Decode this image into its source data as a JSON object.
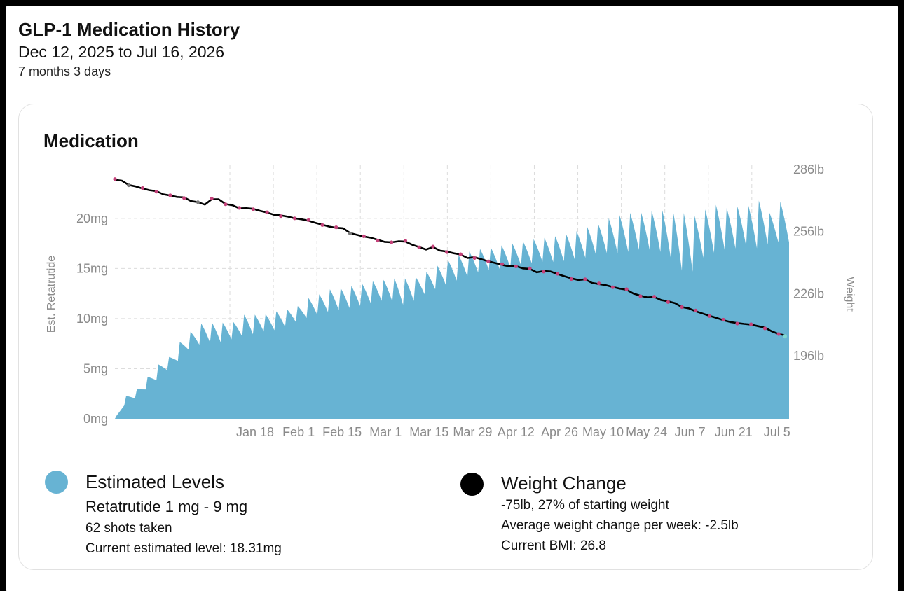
{
  "header": {
    "title": "GLP-1 Medication History",
    "date_range": "Dec 12, 2025 to Jul 16, 2026",
    "duration": "7 months 3 days"
  },
  "card": {
    "title": "Medication"
  },
  "colors": {
    "levels_fill": "#67b3d3",
    "weight_line": "#000000",
    "weight_dot": "#c4427a",
    "weight_dot_gray": "#7a7a7a",
    "weight_dot_teal": "#7fd6cf"
  },
  "chart_data": {
    "type": "area",
    "x_tick_labels": [
      "Jan 18",
      "Feb 1",
      "Feb 15",
      "Mar 1",
      "Mar 15",
      "Mar 29",
      "Apr 12",
      "Apr 26",
      "May 10",
      "May 24",
      "Jun 7",
      "Jun 21",
      "Jul 5"
    ],
    "y_left": {
      "label": "Est. Retatrutide",
      "unit": "mg",
      "ticks": [
        "0mg",
        "5mg",
        "10mg",
        "15mg",
        "20mg"
      ],
      "range": [
        0,
        20
      ]
    },
    "y_right": {
      "label": "Weight",
      "unit": "lb",
      "ticks": [
        "286lb",
        "256lb",
        "226lb",
        "196lb"
      ]
    },
    "grid": true,
    "series": [
      {
        "name": "Estimated Levels",
        "kind": "area",
        "shots": 62,
        "peak_envelope_mg": [
          [
            0,
            1.4
          ],
          [
            3,
            2.4
          ],
          [
            6,
            3.0
          ],
          [
            9,
            4.3
          ],
          [
            12,
            5.5
          ],
          [
            15,
            6.2
          ],
          [
            18,
            7.7
          ],
          [
            21,
            8.7
          ],
          [
            24,
            9.5
          ],
          [
            27,
            9.6
          ],
          [
            30,
            9.6
          ],
          [
            33,
            9.6
          ],
          [
            36,
            10.4
          ],
          [
            39,
            10.4
          ],
          [
            42,
            10.4
          ],
          [
            45,
            10.7
          ],
          [
            48,
            10.9
          ],
          [
            51,
            11.1
          ],
          [
            54,
            12.0
          ],
          [
            57,
            12.3
          ],
          [
            60,
            12.9
          ],
          [
            63,
            13.0
          ],
          [
            66,
            13.2
          ],
          [
            69,
            13.4
          ],
          [
            72,
            13.7
          ],
          [
            75,
            13.8
          ],
          [
            78,
            14.0
          ],
          [
            81,
            14.0
          ],
          [
            84,
            14.0
          ],
          [
            87,
            14.4
          ],
          [
            90,
            15.1
          ],
          [
            93,
            15.6
          ],
          [
            96,
            16.2
          ],
          [
            99,
            16.5
          ],
          [
            102,
            16.9
          ],
          [
            105,
            17.0
          ],
          [
            108,
            17.2
          ],
          [
            111,
            17.4
          ],
          [
            114,
            17.6
          ],
          [
            117,
            17.8
          ],
          [
            120,
            18.0
          ],
          [
            123,
            18.1
          ],
          [
            126,
            18.3
          ],
          [
            129,
            18.6
          ],
          [
            132,
            18.8
          ],
          [
            135,
            19.3
          ],
          [
            138,
            19.6
          ],
          [
            141,
            20.2
          ],
          [
            144,
            20.4
          ],
          [
            147,
            20.6
          ],
          [
            150,
            20.7
          ],
          [
            153,
            20.8
          ],
          [
            156,
            20.8
          ],
          [
            159,
            20.7
          ],
          [
            162,
            20.5
          ],
          [
            165,
            20.2
          ],
          [
            168,
            21.0
          ],
          [
            171,
            21.4
          ],
          [
            174,
            21.0
          ],
          [
            177,
            21.2
          ],
          [
            180,
            21.4
          ],
          [
            183,
            21.8
          ],
          [
            186,
            20.5
          ],
          [
            189,
            21.7
          ],
          [
            192,
            21.7
          ]
        ],
        "trough_envelope_mg": [
          [
            0,
            0
          ],
          [
            3,
            1.5
          ],
          [
            6,
            2.1
          ],
          [
            9,
            3.0
          ],
          [
            12,
            3.9
          ],
          [
            15,
            4.9
          ],
          [
            18,
            5.8
          ],
          [
            21,
            6.9
          ],
          [
            24,
            7.4
          ],
          [
            27,
            7.6
          ],
          [
            30,
            7.6
          ],
          [
            33,
            7.9
          ],
          [
            36,
            8.2
          ],
          [
            39,
            8.4
          ],
          [
            42,
            8.7
          ],
          [
            45,
            8.8
          ],
          [
            48,
            9.1
          ],
          [
            51,
            9.6
          ],
          [
            54,
            10.0
          ],
          [
            57,
            10.3
          ],
          [
            60,
            10.6
          ],
          [
            63,
            10.8
          ],
          [
            66,
            11.0
          ],
          [
            69,
            11.2
          ],
          [
            72,
            11.4
          ],
          [
            75,
            11.7
          ],
          [
            78,
            11.9
          ],
          [
            81,
            11.3
          ],
          [
            84,
            11.5
          ],
          [
            87,
            12.2
          ],
          [
            90,
            12.8
          ],
          [
            93,
            13.1
          ],
          [
            96,
            13.6
          ],
          [
            99,
            14.0
          ],
          [
            102,
            14.4
          ],
          [
            105,
            14.8
          ],
          [
            108,
            14.9
          ],
          [
            111,
            15.0
          ],
          [
            114,
            15.2
          ],
          [
            117,
            15.4
          ],
          [
            120,
            15.6
          ],
          [
            123,
            15.7
          ],
          [
            126,
            15.6
          ],
          [
            129,
            15.8
          ],
          [
            132,
            16.0
          ],
          [
            135,
            16.1
          ],
          [
            138,
            16.4
          ],
          [
            141,
            16.6
          ],
          [
            144,
            16.5
          ],
          [
            147,
            16.7
          ],
          [
            150,
            16.9
          ],
          [
            153,
            16.8
          ],
          [
            156,
            16.6
          ],
          [
            159,
            15.6
          ],
          [
            162,
            14.6
          ],
          [
            165,
            14.7
          ],
          [
            168,
            16.3
          ],
          [
            171,
            16.6
          ],
          [
            174,
            16.8
          ],
          [
            177,
            17.0
          ],
          [
            180,
            17.2
          ],
          [
            183,
            17.0
          ],
          [
            186,
            17.4
          ],
          [
            189,
            17.6
          ],
          [
            192,
            17.6
          ]
        ]
      },
      {
        "name": "Weight Change",
        "kind": "line",
        "points_lb": [
          [
            0,
            281
          ],
          [
            2,
            280.6
          ],
          [
            4,
            278.5
          ],
          [
            6,
            277.8
          ],
          [
            8,
            276.8
          ],
          [
            10,
            276
          ],
          [
            12,
            275.5
          ],
          [
            14,
            274
          ],
          [
            16,
            273.4
          ],
          [
            18,
            272.7
          ],
          [
            20,
            272.5
          ],
          [
            22,
            270.7
          ],
          [
            24,
            270.2
          ],
          [
            26,
            269
          ],
          [
            28,
            271.6
          ],
          [
            30,
            271.6
          ],
          [
            32,
            269.3
          ],
          [
            34,
            268.7
          ],
          [
            36,
            267.2
          ],
          [
            38,
            267.3
          ],
          [
            40,
            267
          ],
          [
            42,
            266
          ],
          [
            44,
            265.2
          ],
          [
            46,
            264.1
          ],
          [
            48,
            263.8
          ],
          [
            50,
            263.2
          ],
          [
            52,
            262.4
          ],
          [
            54,
            261.9
          ],
          [
            56,
            261.2
          ],
          [
            58,
            260.2
          ],
          [
            60,
            259.3
          ],
          [
            62,
            258.4
          ],
          [
            64,
            257.8
          ],
          [
            66,
            257.6
          ],
          [
            68,
            255.3
          ],
          [
            70,
            254.4
          ],
          [
            72,
            253.6
          ],
          [
            74,
            253
          ],
          [
            76,
            252
          ],
          [
            78,
            251
          ],
          [
            80,
            250.8
          ],
          [
            82,
            251.3
          ],
          [
            84,
            251.2
          ],
          [
            86,
            249.6
          ],
          [
            88,
            248.5
          ],
          [
            90,
            247.3
          ],
          [
            92,
            248.5
          ],
          [
            94,
            246.8
          ],
          [
            96,
            246.3
          ],
          [
            98,
            245.5
          ],
          [
            100,
            244.9
          ],
          [
            102,
            243.2
          ],
          [
            104,
            243.6
          ],
          [
            106,
            242.6
          ],
          [
            108,
            241.6
          ],
          [
            110,
            240.8
          ],
          [
            112,
            239.9
          ],
          [
            114,
            239.2
          ],
          [
            116,
            239.3
          ],
          [
            118,
            238.2
          ],
          [
            120,
            238
          ],
          [
            122,
            236.3
          ],
          [
            124,
            236.9
          ],
          [
            126,
            236.7
          ],
          [
            128,
            235.5
          ],
          [
            130,
            234.4
          ],
          [
            132,
            233.4
          ],
          [
            134,
            232.6
          ],
          [
            136,
            232.9
          ],
          [
            138,
            231.2
          ],
          [
            140,
            230.6
          ],
          [
            142,
            230.1
          ],
          [
            144,
            229.2
          ],
          [
            146,
            228.4
          ],
          [
            148,
            227.9
          ],
          [
            150,
            226
          ],
          [
            152,
            225
          ],
          [
            154,
            224.2
          ],
          [
            156,
            224.4
          ],
          [
            158,
            222.9
          ],
          [
            160,
            222.3
          ],
          [
            162,
            221.4
          ],
          [
            164,
            219.5
          ],
          [
            166,
            218.9
          ],
          [
            168,
            217.5
          ],
          [
            170,
            216.4
          ],
          [
            172,
            215.3
          ],
          [
            174,
            214.3
          ],
          [
            176,
            213.2
          ],
          [
            178,
            212.3
          ],
          [
            180,
            211.8
          ],
          [
            182,
            211.4
          ],
          [
            184,
            211.1
          ],
          [
            186,
            210.3
          ],
          [
            188,
            209.6
          ],
          [
            190,
            207.8
          ],
          [
            192,
            206.5
          ],
          [
            194,
            205.8
          ]
        ]
      }
    ]
  },
  "legend": {
    "levels": {
      "title": "Estimated Levels",
      "medication": "Retatrutide 1 mg - 9 mg",
      "shots": "62 shots taken",
      "current": "Current estimated level: 18.31mg"
    },
    "weight": {
      "title": "Weight Change",
      "change": "-75lb, 27% of starting weight",
      "average": "Average weight change per week: -2.5lb",
      "bmi": "Current BMI: 26.8"
    }
  }
}
